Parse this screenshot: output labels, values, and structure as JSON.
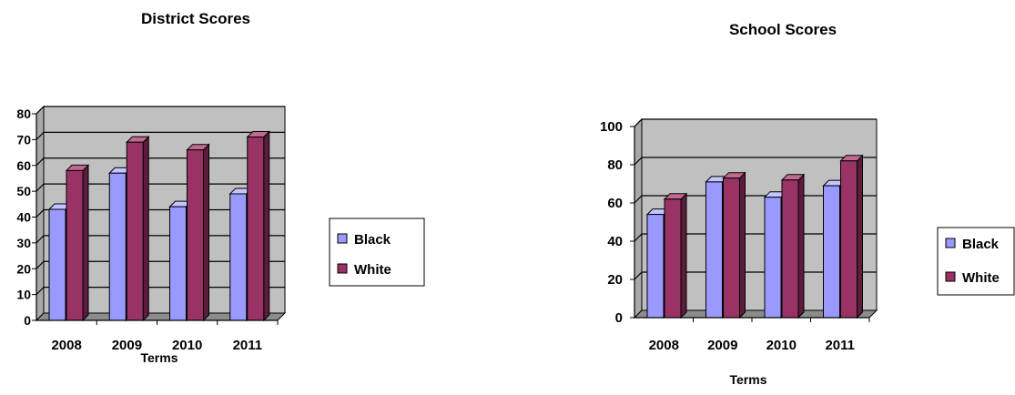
{
  "colors": {
    "black_series_front": "#9999ff",
    "black_series_side": "#5050b8",
    "black_series_top": "#c4c4ff",
    "white_series_front": "#993366",
    "white_series_side": "#5c1c3c",
    "white_series_top": "#c06a92",
    "plot_bg": "#c0c0c0",
    "floor": "#8c8c8c",
    "gridline": "#000000"
  },
  "chart_data": [
    {
      "type": "bar",
      "title": "District Scores",
      "xlabel": "Terms",
      "ylabel": "",
      "categories": [
        "2008",
        "2009",
        "2010",
        "2011"
      ],
      "series": [
        {
          "name": "Black",
          "values": [
            43,
            57,
            44,
            49
          ]
        },
        {
          "name": "White",
          "values": [
            58,
            69,
            66,
            71
          ]
        }
      ],
      "ylim": [
        0,
        80
      ],
      "yticks": [
        0,
        10,
        20,
        30,
        40,
        50,
        60,
        70,
        80
      ],
      "grid": true,
      "legend": "right"
    },
    {
      "type": "bar",
      "title": "School Scores",
      "xlabel": "Terms",
      "ylabel": "",
      "categories": [
        "2008",
        "2009",
        "2010",
        "2011"
      ],
      "series": [
        {
          "name": "Black",
          "values": [
            54,
            71,
            63,
            69
          ]
        },
        {
          "name": "White",
          "values": [
            62,
            73,
            72,
            82
          ]
        }
      ],
      "ylim": [
        0,
        100
      ],
      "yticks": [
        0,
        20,
        40,
        60,
        80,
        100
      ],
      "grid": true,
      "legend": "right"
    }
  ]
}
